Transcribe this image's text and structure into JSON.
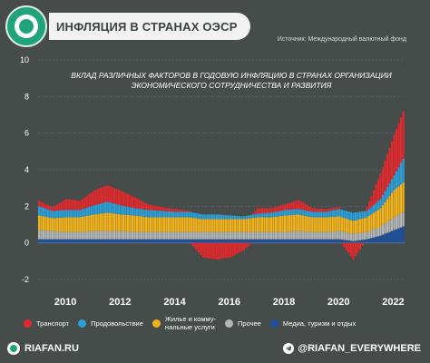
{
  "header": {
    "title": "ИНФЛЯЦИЯ В СТРАНАХ ОЭСР",
    "source": "Источник: Международный валютный фонд"
  },
  "annotation": "ВКЛАД РАЗЛИЧНЫХ ФАКТОРОВ В ГОДОВУЮ ИНФЛЯЦИЮ В СТРАНАХ ОРГАНИЗАЦИИ ЭКОНОМИЧЕСКОГО СОТРУДНИЧЕСТВА И РАЗВИТИЯ",
  "footer": {
    "site": "RIAFAN.RU",
    "telegram": "@RIAFAN_EVERYWHERE"
  },
  "colors": {
    "background": "#454c49",
    "transport": "#e0292c",
    "food": "#2a9fd8",
    "housing": "#f2b31b",
    "other": "#b3b6b4",
    "media": "#1d4f9c"
  },
  "chart_data": {
    "type": "bar",
    "stacked": true,
    "title": "",
    "xlabel": "",
    "ylabel": "",
    "ylim": [
      -2,
      10
    ],
    "y_ticks": [
      -2,
      0,
      2,
      4,
      6,
      8,
      10
    ],
    "x_ticks": [
      "2010",
      "2012",
      "2014",
      "2016",
      "2018",
      "2020",
      "2022"
    ],
    "grid": true,
    "legend_position": "bottom",
    "x_start": "2009-01",
    "frequency": "monthly",
    "categories": [
      "2009-01",
      "2009-07",
      "2010-01",
      "2010-07",
      "2011-01",
      "2011-07",
      "2012-01",
      "2012-07",
      "2013-01",
      "2013-07",
      "2014-01",
      "2014-07",
      "2015-01",
      "2015-07",
      "2016-01",
      "2016-07",
      "2017-01",
      "2017-07",
      "2018-01",
      "2018-07",
      "2019-01",
      "2019-07",
      "2020-01",
      "2020-07",
      "2021-01",
      "2021-07",
      "2022-01",
      "2022-05"
    ],
    "series": [
      {
        "name": "Транспорт",
        "color": "#e0292c",
        "values": [
          0.3,
          0.2,
          0.6,
          0.5,
          0.8,
          0.9,
          0.8,
          0.6,
          0.3,
          0.2,
          0.15,
          0.05,
          -0.8,
          -0.9,
          -0.8,
          -0.4,
          0.3,
          0.25,
          0.3,
          0.5,
          0.2,
          0.15,
          0.1,
          -0.9,
          0.2,
          1.4,
          2.2,
          2.6
        ]
      },
      {
        "name": "Продовольствие",
        "color": "#2a9fd8",
        "values": [
          0.5,
          0.4,
          0.4,
          0.4,
          0.5,
          0.6,
          0.5,
          0.4,
          0.4,
          0.35,
          0.3,
          0.3,
          0.25,
          0.25,
          0.2,
          0.15,
          0.2,
          0.25,
          0.3,
          0.3,
          0.3,
          0.3,
          0.4,
          0.45,
          0.35,
          0.5,
          0.8,
          1.3
        ]
      },
      {
        "name": "Жилье и коммунальные услуги",
        "color": "#f2b31b",
        "values": [
          0.8,
          0.7,
          0.8,
          0.8,
          0.9,
          1.0,
          0.9,
          0.9,
          0.8,
          0.8,
          0.8,
          0.8,
          0.7,
          0.7,
          0.7,
          0.7,
          0.8,
          0.8,
          0.9,
          0.9,
          0.8,
          0.8,
          0.8,
          0.7,
          0.8,
          1.0,
          1.5,
          1.6
        ]
      },
      {
        "name": "Прочее",
        "color": "#b3b6b4",
        "values": [
          0.5,
          0.45,
          0.4,
          0.4,
          0.45,
          0.45,
          0.45,
          0.4,
          0.4,
          0.4,
          0.4,
          0.4,
          0.4,
          0.4,
          0.4,
          0.4,
          0.4,
          0.4,
          0.4,
          0.45,
          0.4,
          0.4,
          0.45,
          0.4,
          0.4,
          0.5,
          0.7,
          0.8
        ]
      },
      {
        "name": "Медиа, туризм и отдых",
        "color": "#1d4f9c",
        "values": [
          0.2,
          0.2,
          0.2,
          0.2,
          0.2,
          0.2,
          0.2,
          0.2,
          0.2,
          0.2,
          0.2,
          0.2,
          0.2,
          0.2,
          0.2,
          0.2,
          0.2,
          0.2,
          0.2,
          0.2,
          0.2,
          0.2,
          0.2,
          0.1,
          0.2,
          0.4,
          0.7,
          0.9
        ]
      }
    ]
  },
  "legend": [
    {
      "label": "Транспорт",
      "color": "#e0292c"
    },
    {
      "label": "Продовольствие",
      "color": "#2a9fd8"
    },
    {
      "label": "Жилье и комму-\nнальные услуги",
      "color": "#f2b31b"
    },
    {
      "label": "Прочее",
      "color": "#b3b6b4"
    },
    {
      "label": "Медиа, туризм и отдых",
      "color": "#1d4f9c"
    }
  ]
}
